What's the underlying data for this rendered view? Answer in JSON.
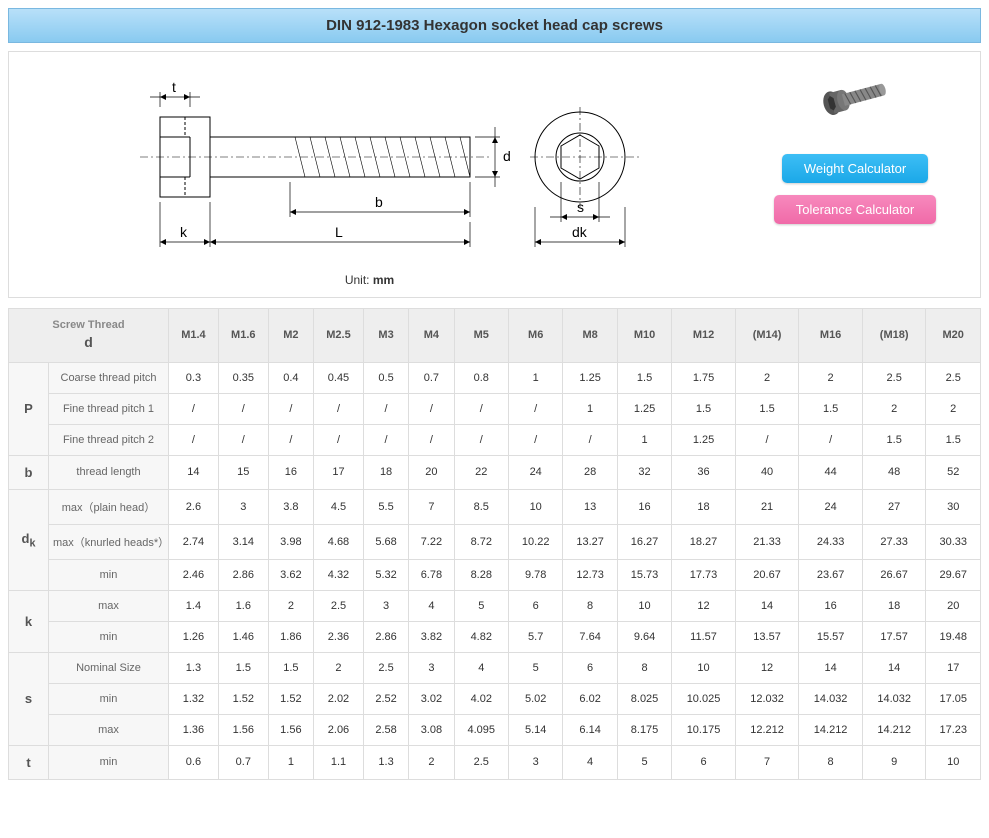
{
  "title": "DIN 912-1983 Hexagon socket head cap screws",
  "unit_prefix": "Unit: ",
  "unit": "mm",
  "buttons": {
    "weight": "Weight Calculator",
    "tolerance": "Tolerance Calculator"
  },
  "diagram_labels": {
    "t": "t",
    "d": "d",
    "b": "b",
    "k": "k",
    "L": "L",
    "s": "s",
    "dk": "dk"
  },
  "table": {
    "thread_label": "Screw Thread",
    "thread_symbol": "d",
    "columns": [
      "M1.4",
      "M1.6",
      "M2",
      "M2.5",
      "M3",
      "M4",
      "M5",
      "M6",
      "M8",
      "M10",
      "M12",
      "(M14)",
      "M16",
      "(M18)",
      "M20"
    ],
    "groups": [
      {
        "symbol": "P",
        "rows": [
          {
            "label": "Coarse thread pitch",
            "values": [
              "0.3",
              "0.35",
              "0.4",
              "0.45",
              "0.5",
              "0.7",
              "0.8",
              "1",
              "1.25",
              "1.5",
              "1.75",
              "2",
              "2",
              "2.5",
              "2.5"
            ]
          },
          {
            "label": "Fine thread pitch 1",
            "values": [
              "/",
              "/",
              "/",
              "/",
              "/",
              "/",
              "/",
              "/",
              "1",
              "1.25",
              "1.5",
              "1.5",
              "1.5",
              "2",
              "2"
            ]
          },
          {
            "label": "Fine thread pitch 2",
            "values": [
              "/",
              "/",
              "/",
              "/",
              "/",
              "/",
              "/",
              "/",
              "/",
              "1",
              "1.25",
              "/",
              "/",
              "1.5",
              "1.5"
            ]
          }
        ]
      },
      {
        "symbol": "b",
        "rows": [
          {
            "label": "thread length",
            "values": [
              "14",
              "15",
              "16",
              "17",
              "18",
              "20",
              "22",
              "24",
              "28",
              "32",
              "36",
              "40",
              "44",
              "48",
              "52"
            ]
          }
        ]
      },
      {
        "symbol": "d<sub>k</sub>",
        "sym_plain": "dk",
        "rows": [
          {
            "label": "max（plain head）",
            "values": [
              "2.6",
              "3",
              "3.8",
              "4.5",
              "5.5",
              "7",
              "8.5",
              "10",
              "13",
              "16",
              "18",
              "21",
              "24",
              "27",
              "30"
            ]
          },
          {
            "label": "max（knurled heads*）",
            "values": [
              "2.74",
              "3.14",
              "3.98",
              "4.68",
              "5.68",
              "7.22",
              "8.72",
              "10.22",
              "13.27",
              "16.27",
              "18.27",
              "21.33",
              "24.33",
              "27.33",
              "30.33"
            ]
          },
          {
            "label": "min",
            "values": [
              "2.46",
              "2.86",
              "3.62",
              "4.32",
              "5.32",
              "6.78",
              "8.28",
              "9.78",
              "12.73",
              "15.73",
              "17.73",
              "20.67",
              "23.67",
              "26.67",
              "29.67"
            ]
          }
        ]
      },
      {
        "symbol": "k",
        "rows": [
          {
            "label": "max",
            "values": [
              "1.4",
              "1.6",
              "2",
              "2.5",
              "3",
              "4",
              "5",
              "6",
              "8",
              "10",
              "12",
              "14",
              "16",
              "18",
              "20"
            ]
          },
          {
            "label": "min",
            "values": [
              "1.26",
              "1.46",
              "1.86",
              "2.36",
              "2.86",
              "3.82",
              "4.82",
              "5.7",
              "7.64",
              "9.64",
              "11.57",
              "13.57",
              "15.57",
              "17.57",
              "19.48"
            ]
          }
        ]
      },
      {
        "symbol": "s",
        "rows": [
          {
            "label": "Nominal Size",
            "values": [
              "1.3",
              "1.5",
              "1.5",
              "2",
              "2.5",
              "3",
              "4",
              "5",
              "6",
              "8",
              "10",
              "12",
              "14",
              "14",
              "17"
            ]
          },
          {
            "label": "min",
            "values": [
              "1.32",
              "1.52",
              "1.52",
              "2.02",
              "2.52",
              "3.02",
              "4.02",
              "5.02",
              "6.02",
              "8.025",
              "10.025",
              "12.032",
              "14.032",
              "14.032",
              "17.05"
            ]
          },
          {
            "label": "max",
            "values": [
              "1.36",
              "1.56",
              "1.56",
              "2.06",
              "2.58",
              "3.08",
              "4.095",
              "5.14",
              "6.14",
              "8.175",
              "10.175",
              "12.212",
              "14.212",
              "14.212",
              "17.23"
            ]
          }
        ]
      },
      {
        "symbol": "t",
        "rows": [
          {
            "label": "min",
            "values": [
              "0.6",
              "0.7",
              "1",
              "1.1",
              "1.3",
              "2",
              "2.5",
              "3",
              "4",
              "5",
              "6",
              "7",
              "8",
              "9",
              "10"
            ]
          }
        ]
      }
    ]
  },
  "colors": {
    "header_bg_top": "#b8e0f9",
    "header_bg_bottom": "#89caf0",
    "btn_blue": "#1ba8e8",
    "btn_pink": "#f06aa8",
    "border": "#dddddd",
    "th_bg": "#eeeeee",
    "lbl_bg": "#f7f7f7"
  }
}
